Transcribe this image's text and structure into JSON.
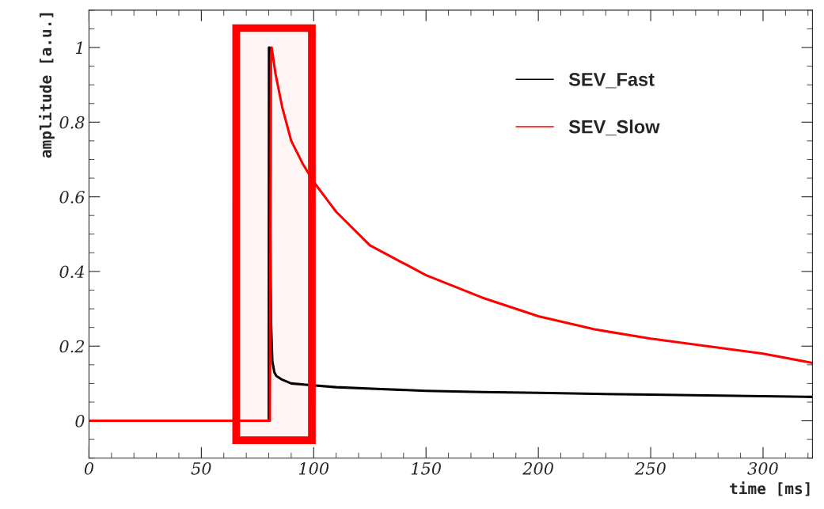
{
  "chart_data": {
    "type": "line",
    "xlabel": "time [ms]",
    "ylabel": "amplitude [a.u.]",
    "xlim": [
      0,
      322
    ],
    "ylim": [
      -0.1,
      1.1
    ],
    "xticks": [
      0,
      50,
      100,
      150,
      200,
      250,
      300
    ],
    "yticks": [
      0,
      0.2,
      0.4,
      0.6,
      0.8,
      1
    ],
    "grid": false,
    "legend": "top right",
    "line_style": "solid",
    "marker": "none",
    "series": [
      {
        "name": "SEV_Fast",
        "color": "#000000",
        "x": [
          0,
          80,
          80.1,
          80.4,
          80.5,
          81,
          81.6,
          82.5,
          83.4,
          86,
          90,
          97.5,
          110,
          130,
          150,
          175,
          200,
          225,
          250,
          275,
          300,
          322
        ],
        "values": [
          0,
          0,
          1,
          1,
          0.66,
          0.27,
          0.16,
          0.13,
          0.12,
          0.11,
          0.1,
          0.096,
          0.09,
          0.085,
          0.08,
          0.077,
          0.075,
          0.072,
          0.07,
          0.068,
          0.066,
          0.064
        ]
      },
      {
        "name": "SEV_Slow",
        "color": "#ff0000",
        "x": [
          0,
          80.5,
          81,
          81.3,
          83,
          86,
          90,
          95,
          100,
          110,
          125,
          150,
          175,
          200,
          225,
          250,
          275,
          300,
          322
        ],
        "values": [
          0,
          0,
          0.98,
          1,
          0.93,
          0.84,
          0.75,
          0.69,
          0.64,
          0.56,
          0.47,
          0.39,
          0.33,
          0.28,
          0.245,
          0.22,
          0.2,
          0.18,
          0.155
        ]
      }
    ],
    "bands": [
      {
        "axis": "x",
        "from": 65.5,
        "to": 99.2,
        "color": "#ff0000"
      }
    ]
  }
}
